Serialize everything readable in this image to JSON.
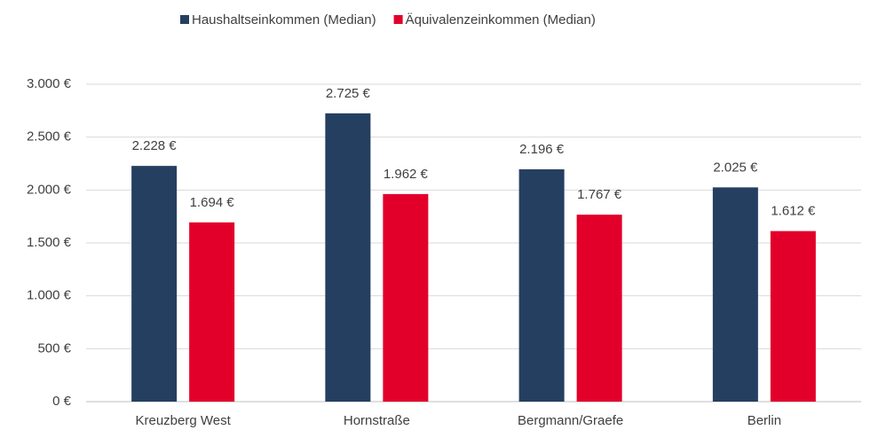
{
  "chart_data": {
    "type": "bar",
    "categories": [
      "Kreuzberg West",
      "Hornstraße",
      "Bergmann/Graefe",
      "Berlin"
    ],
    "series": [
      {
        "name": "Haushaltseinkommen (Median)",
        "color": "#253f60",
        "values": [
          2228,
          2725,
          2196,
          2025
        ],
        "value_labels": [
          "2.228 €",
          "2.725 €",
          "2.196 €",
          "2.025 €"
        ]
      },
      {
        "name": "Äquivalenzeinkommen (Median)",
        "color": "#e2002a",
        "values": [
          1694,
          1962,
          1767,
          1612
        ],
        "value_labels": [
          "1.694 €",
          "1.962 €",
          "1.767 €",
          "1.612 €"
        ]
      }
    ],
    "ylim": [
      0,
      3000
    ],
    "yticks": [
      {
        "value": 0,
        "label": "0 €"
      },
      {
        "value": 500,
        "label": "500 €"
      },
      {
        "value": 1000,
        "label": "1.000 €"
      },
      {
        "value": 1500,
        "label": "1.500 €"
      },
      {
        "value": 2000,
        "label": "2.000 €"
      },
      {
        "value": 2500,
        "label": "2.500 €"
      },
      {
        "value": 3000,
        "label": "3.000 €"
      }
    ],
    "grid": true,
    "legend": "top"
  }
}
